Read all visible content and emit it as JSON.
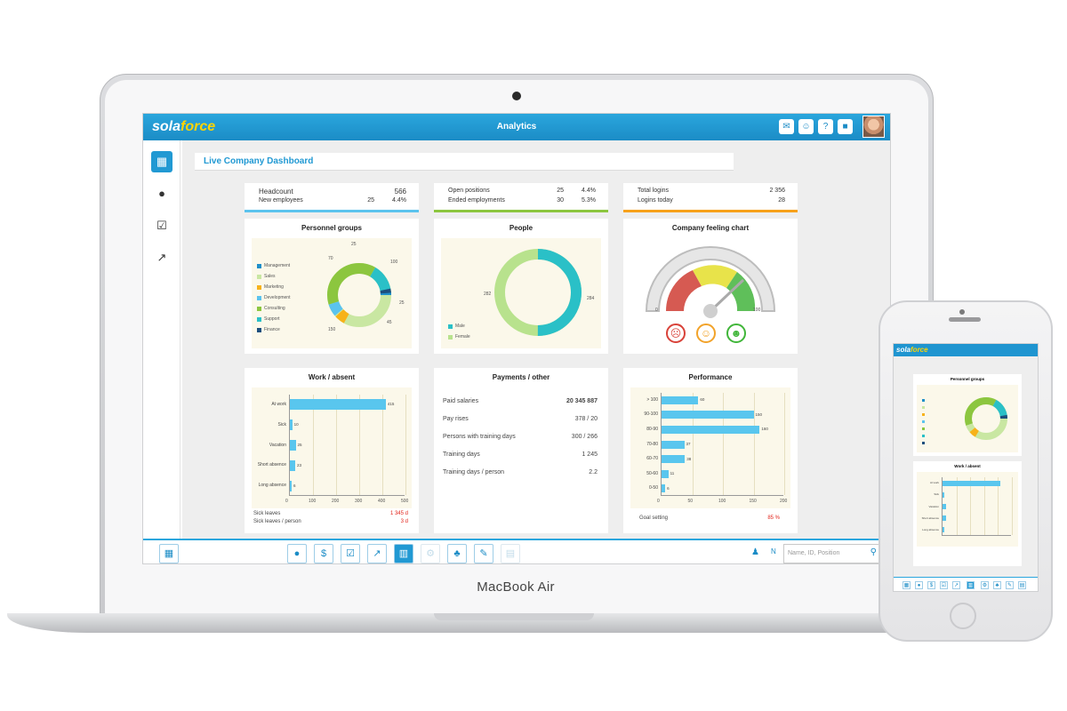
{
  "device": {
    "laptop_label": "MacBook Air"
  },
  "app": {
    "logo_part1": "sola",
    "logo_part2": "force",
    "title": "Analytics",
    "top_icons": [
      "chat-icon",
      "users-icon",
      "help-icon",
      "lock-icon"
    ]
  },
  "sidebar": {
    "items": [
      "grid-icon",
      "person-icon",
      "checkbox-icon",
      "trend-icon"
    ]
  },
  "dashboard": {
    "title": "Live Company Dashboard"
  },
  "kpis": [
    {
      "rows": [
        {
          "label": "Headcount",
          "v1": "566",
          "v2": ""
        },
        {
          "label": "New employees",
          "v1": "25",
          "v2": "4.4%"
        }
      ],
      "color": "#5bc3ee"
    },
    {
      "rows": [
        {
          "label": "Open positions",
          "v1": "25",
          "v2": "4.4%"
        },
        {
          "label": "Ended employments",
          "v1": "30",
          "v2": "5.3%"
        }
      ],
      "color": "#8cc63f"
    },
    {
      "rows": [
        {
          "label": "Total logins",
          "v1": "",
          "v2": "2 356"
        },
        {
          "label": "Logins today",
          "v1": "",
          "v2": "28"
        }
      ],
      "color": "#f7a11a"
    }
  ],
  "personnel": {
    "title": "Personnel groups",
    "legend": [
      {
        "label": "Management",
        "color": "#1f8fc9"
      },
      {
        "label": "Sales",
        "color": "#c9e7a2"
      },
      {
        "label": "Marketing",
        "color": "#f7b21a"
      },
      {
        "label": "Development",
        "color": "#5bc3ee"
      },
      {
        "label": "Consulting",
        "color": "#8cc63f"
      },
      {
        "label": "Support",
        "color": "#2ac0c7"
      },
      {
        "label": "Finance",
        "color": "#1d4f7d"
      }
    ],
    "labels": {
      "a": "25",
      "b": "70",
      "c": "100",
      "d": "25",
      "e": "45",
      "f": "150",
      "g": "15"
    }
  },
  "people": {
    "title": "People",
    "legend": [
      {
        "label": "Male",
        "color": "#2ac0c7"
      },
      {
        "label": "Female",
        "color": "#b8e28d"
      }
    ],
    "left_value": "282",
    "right_value": "284"
  },
  "feeling": {
    "title": "Company feeling chart",
    "gauge_min": "0",
    "gauge_max": "100",
    "faces": [
      "sad-face-icon",
      "neutral-face-icon",
      "happy-face-icon"
    ]
  },
  "work": {
    "title": "Work / absent",
    "rows": [
      {
        "label": "At work",
        "value": 415
      },
      {
        "label": "Sick",
        "value": 10
      },
      {
        "label": "Vacation",
        "value": 25
      },
      {
        "label": "Short absence",
        "value": 23
      },
      {
        "label": "Long absence",
        "value": 6
      }
    ],
    "ticks": [
      "0",
      "100",
      "200",
      "300",
      "400",
      "500"
    ],
    "xmax": 500,
    "footer": [
      {
        "label": "Sick leaves",
        "value": "1 345 d"
      },
      {
        "label": "Sick leaves / person",
        "value": "3 d"
      }
    ]
  },
  "payments": {
    "title": "Payments / other",
    "rows": [
      {
        "label": "Paid salaries",
        "value": "20 345 887"
      },
      {
        "label": "Pay rises",
        "value": "378 / 20"
      },
      {
        "label": "Persons with training days",
        "value": "300 / 266"
      },
      {
        "label": "Training days",
        "value": "1 245"
      },
      {
        "label": "Training days / person",
        "value": "2.2"
      }
    ]
  },
  "performance": {
    "title": "Performance",
    "rows": [
      {
        "label": "> 100",
        "value": 60
      },
      {
        "label": "90-100",
        "value": 150
      },
      {
        "label": "80-90",
        "value": 160
      },
      {
        "label": "70-80",
        "value": 37
      },
      {
        "label": "60-70",
        "value": 38
      },
      {
        "label": "50-60",
        "value": 11
      },
      {
        "label": "0-50",
        "value": 6
      }
    ],
    "ticks": [
      "0",
      "50",
      "100",
      "150",
      "200"
    ],
    "xmax": 200,
    "footer_label": "Goal setting",
    "footer_value": "85 %"
  },
  "bottom": {
    "search_placeholder": "Name, ID, Position",
    "n_label": "N"
  },
  "phone": {
    "logo_part1": "sola",
    "logo_part2": "force",
    "panel1_title": "Personnel groups",
    "panel2_title": "Work / absent"
  }
}
